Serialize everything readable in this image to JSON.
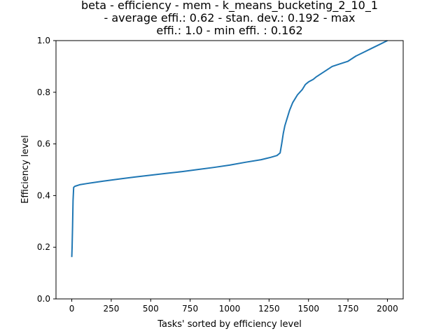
{
  "chart_data": {
    "type": "line",
    "title_lines": [
      "beta - efficiency - mem - k_means_bucketing_2_10_1",
      "- average effi.: 0.62 - stan. dev.: 0.192 - max",
      "effi.: 1.0 - min effi. : 0.162"
    ],
    "xlabel": "Tasks' sorted by efficiency level",
    "ylabel": "Efficiency level",
    "xlim": [
      -100,
      2100
    ],
    "ylim": [
      0.0,
      1.0
    ],
    "xticks": [
      0,
      250,
      500,
      750,
      1000,
      1250,
      1500,
      1750,
      2000
    ],
    "xtick_labels": [
      "0",
      "250",
      "500",
      "750",
      "1000",
      "1250",
      "1500",
      "1750",
      "2000"
    ],
    "yticks": [
      0.0,
      0.2,
      0.4,
      0.6,
      0.8,
      1.0
    ],
    "ytick_labels": [
      "0.0",
      "0.2",
      "0.4",
      "0.6",
      "0.8",
      "1.0"
    ],
    "grid": false,
    "series": [
      {
        "color": "#1f77b4",
        "x": [
          0,
          2,
          5,
          8,
          12,
          20,
          50,
          100,
          200,
          300,
          400,
          500,
          600,
          700,
          800,
          900,
          1000,
          1100,
          1200,
          1260,
          1300,
          1320,
          1330,
          1335,
          1340,
          1350,
          1360,
          1365,
          1380,
          1400,
          1430,
          1460,
          1480,
          1500,
          1530,
          1550,
          1600,
          1650,
          1700,
          1750,
          1800,
          1850,
          1900,
          1950,
          2000
        ],
        "y": [
          0.162,
          0.2,
          0.28,
          0.38,
          0.432,
          0.436,
          0.442,
          0.447,
          0.456,
          0.464,
          0.472,
          0.479,
          0.486,
          0.493,
          0.501,
          0.509,
          0.518,
          0.529,
          0.539,
          0.548,
          0.555,
          0.565,
          0.6,
          0.62,
          0.64,
          0.67,
          0.69,
          0.7,
          0.73,
          0.76,
          0.79,
          0.81,
          0.83,
          0.84,
          0.85,
          0.86,
          0.88,
          0.9,
          0.91,
          0.92,
          0.94,
          0.955,
          0.97,
          0.985,
          1.0
        ]
      }
    ]
  }
}
